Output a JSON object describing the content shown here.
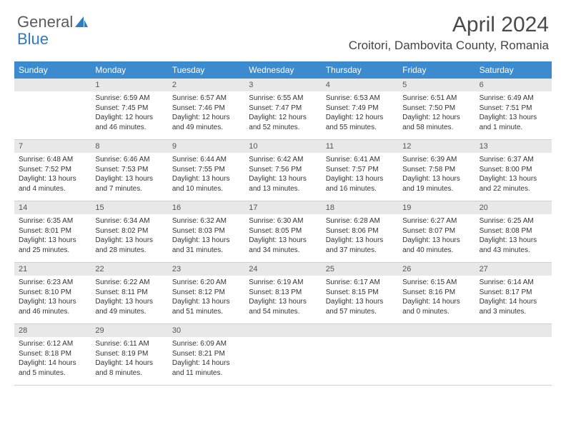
{
  "brand": {
    "part1": "General",
    "part2": "Blue"
  },
  "title": "April 2024",
  "location": "Croitori, Dambovita County, Romania",
  "day_headers": [
    "Sunday",
    "Monday",
    "Tuesday",
    "Wednesday",
    "Thursday",
    "Friday",
    "Saturday"
  ],
  "colors": {
    "header_bg": "#3d8bcf",
    "header_fg": "#ffffff",
    "daynum_bg": "#e8e8e8",
    "border": "#d0d0d0"
  },
  "start_blank": 1,
  "days": [
    {
      "n": "1",
      "sr": "6:59 AM",
      "ss": "7:45 PM",
      "dl": "12 hours and 46 minutes."
    },
    {
      "n": "2",
      "sr": "6:57 AM",
      "ss": "7:46 PM",
      "dl": "12 hours and 49 minutes."
    },
    {
      "n": "3",
      "sr": "6:55 AM",
      "ss": "7:47 PM",
      "dl": "12 hours and 52 minutes."
    },
    {
      "n": "4",
      "sr": "6:53 AM",
      "ss": "7:49 PM",
      "dl": "12 hours and 55 minutes."
    },
    {
      "n": "5",
      "sr": "6:51 AM",
      "ss": "7:50 PM",
      "dl": "12 hours and 58 minutes."
    },
    {
      "n": "6",
      "sr": "6:49 AM",
      "ss": "7:51 PM",
      "dl": "13 hours and 1 minute."
    },
    {
      "n": "7",
      "sr": "6:48 AM",
      "ss": "7:52 PM",
      "dl": "13 hours and 4 minutes."
    },
    {
      "n": "8",
      "sr": "6:46 AM",
      "ss": "7:53 PM",
      "dl": "13 hours and 7 minutes."
    },
    {
      "n": "9",
      "sr": "6:44 AM",
      "ss": "7:55 PM",
      "dl": "13 hours and 10 minutes."
    },
    {
      "n": "10",
      "sr": "6:42 AM",
      "ss": "7:56 PM",
      "dl": "13 hours and 13 minutes."
    },
    {
      "n": "11",
      "sr": "6:41 AM",
      "ss": "7:57 PM",
      "dl": "13 hours and 16 minutes."
    },
    {
      "n": "12",
      "sr": "6:39 AM",
      "ss": "7:58 PM",
      "dl": "13 hours and 19 minutes."
    },
    {
      "n": "13",
      "sr": "6:37 AM",
      "ss": "8:00 PM",
      "dl": "13 hours and 22 minutes."
    },
    {
      "n": "14",
      "sr": "6:35 AM",
      "ss": "8:01 PM",
      "dl": "13 hours and 25 minutes."
    },
    {
      "n": "15",
      "sr": "6:34 AM",
      "ss": "8:02 PM",
      "dl": "13 hours and 28 minutes."
    },
    {
      "n": "16",
      "sr": "6:32 AM",
      "ss": "8:03 PM",
      "dl": "13 hours and 31 minutes."
    },
    {
      "n": "17",
      "sr": "6:30 AM",
      "ss": "8:05 PM",
      "dl": "13 hours and 34 minutes."
    },
    {
      "n": "18",
      "sr": "6:28 AM",
      "ss": "8:06 PM",
      "dl": "13 hours and 37 minutes."
    },
    {
      "n": "19",
      "sr": "6:27 AM",
      "ss": "8:07 PM",
      "dl": "13 hours and 40 minutes."
    },
    {
      "n": "20",
      "sr": "6:25 AM",
      "ss": "8:08 PM",
      "dl": "13 hours and 43 minutes."
    },
    {
      "n": "21",
      "sr": "6:23 AM",
      "ss": "8:10 PM",
      "dl": "13 hours and 46 minutes."
    },
    {
      "n": "22",
      "sr": "6:22 AM",
      "ss": "8:11 PM",
      "dl": "13 hours and 49 minutes."
    },
    {
      "n": "23",
      "sr": "6:20 AM",
      "ss": "8:12 PM",
      "dl": "13 hours and 51 minutes."
    },
    {
      "n": "24",
      "sr": "6:19 AM",
      "ss": "8:13 PM",
      "dl": "13 hours and 54 minutes."
    },
    {
      "n": "25",
      "sr": "6:17 AM",
      "ss": "8:15 PM",
      "dl": "13 hours and 57 minutes."
    },
    {
      "n": "26",
      "sr": "6:15 AM",
      "ss": "8:16 PM",
      "dl": "14 hours and 0 minutes."
    },
    {
      "n": "27",
      "sr": "6:14 AM",
      "ss": "8:17 PM",
      "dl": "14 hours and 3 minutes."
    },
    {
      "n": "28",
      "sr": "6:12 AM",
      "ss": "8:18 PM",
      "dl": "14 hours and 5 minutes."
    },
    {
      "n": "29",
      "sr": "6:11 AM",
      "ss": "8:19 PM",
      "dl": "14 hours and 8 minutes."
    },
    {
      "n": "30",
      "sr": "6:09 AM",
      "ss": "8:21 PM",
      "dl": "14 hours and 11 minutes."
    }
  ],
  "labels": {
    "sunrise": "Sunrise: ",
    "sunset": "Sunset: ",
    "daylight": "Daylight: "
  }
}
